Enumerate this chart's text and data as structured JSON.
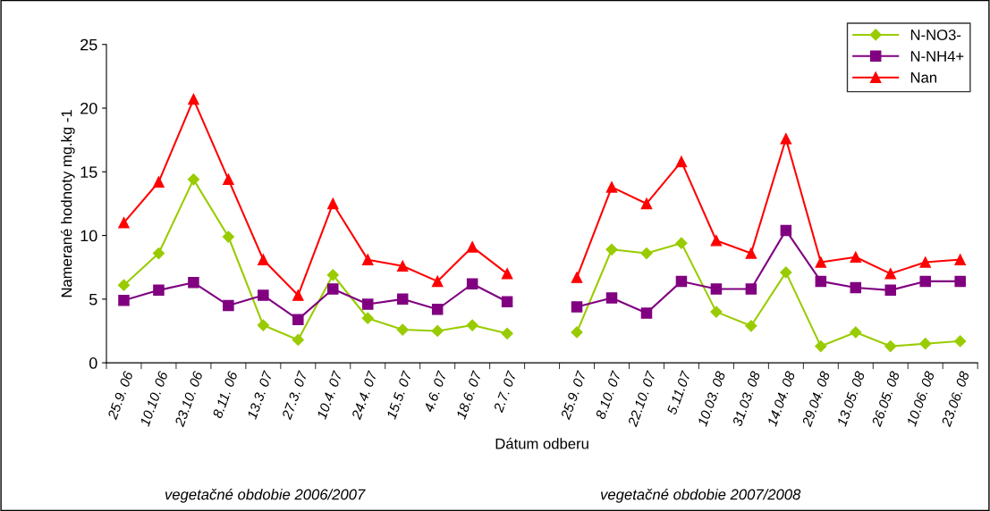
{
  "chart_data": {
    "type": "line",
    "xlabel": "Dátum odberu",
    "ylabel": "Namerané hodnoty mg.kg -1",
    "categories": [
      "25.9. 06",
      "10.10. 06",
      "23.10. 06",
      "8.11. 06",
      "13.3. 07",
      "27.3. 07",
      "10.4. 07",
      "24.4. 07",
      "15.5. 07",
      "4.6. 07",
      "18.6. 07",
      "2.7. 07",
      null,
      "25.9. 07",
      "8.10. 07",
      "22.10. 07",
      "5.11.07",
      "10.03. 08",
      "31.03. 08",
      "14.04. 08",
      "29.04. 08",
      "13.05. 08",
      "26.05. 08",
      "10.06. 08",
      "23.06. 08"
    ],
    "series": [
      {
        "name": "N-NO3-",
        "color": "#99cc00",
        "marker": "diamond",
        "values": [
          6.1,
          8.6,
          14.4,
          9.9,
          2.95,
          1.8,
          6.9,
          3.5,
          2.6,
          2.5,
          2.95,
          2.3,
          null,
          2.4,
          8.9,
          8.6,
          9.4,
          4.0,
          2.9,
          7.1,
          1.3,
          2.4,
          1.3,
          1.5,
          1.7
        ]
      },
      {
        "name": "N-NH4+",
        "color": "#800080",
        "marker": "square",
        "values": [
          4.9,
          5.7,
          6.3,
          4.5,
          5.3,
          3.4,
          5.8,
          4.6,
          5.0,
          4.2,
          6.2,
          4.8,
          null,
          4.4,
          5.1,
          3.9,
          6.4,
          5.8,
          5.8,
          10.4,
          6.4,
          5.9,
          5.7,
          6.4,
          6.4
        ]
      },
      {
        "name": "Nan",
        "color": "#ff0000",
        "marker": "triangle",
        "values": [
          11.0,
          14.2,
          20.7,
          14.4,
          8.1,
          5.3,
          12.5,
          8.1,
          7.6,
          6.4,
          9.1,
          7.0,
          null,
          6.7,
          13.8,
          12.5,
          15.8,
          9.6,
          8.6,
          17.6,
          7.9,
          8.3,
          7.0,
          7.9,
          8.1
        ]
      }
    ],
    "ylim": [
      0,
      25
    ],
    "yticks": [
      0,
      5,
      10,
      15,
      20,
      25
    ],
    "grid": false,
    "legend": "top right",
    "annotations": [
      "vegetačné obdobie 2006/2007",
      "vegetačné obdobie 2007/2008"
    ]
  }
}
